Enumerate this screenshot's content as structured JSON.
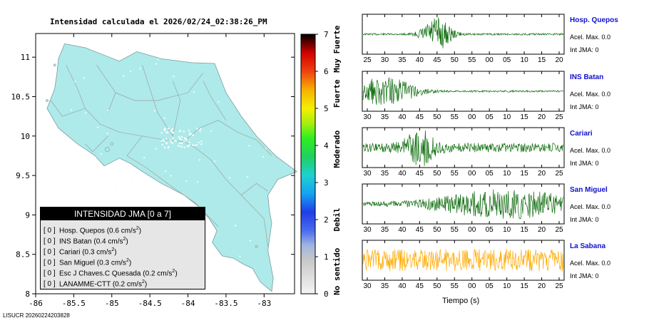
{
  "title": "Intensidad calculada el 2026/02/24_02:38:26_PM",
  "footer": "LISUCR 20260224203828",
  "colors": {
    "land": "#aeeaea",
    "roads": "#a0a0a0",
    "trace_green": "#0a6a0a",
    "trace_orange": "#ffaa00",
    "station_name": "#1010d0"
  },
  "map": {
    "lon_ticks": [
      "-86",
      "-85.5",
      "-85",
      "-84.5",
      "-84",
      "-83.5",
      "-83"
    ],
    "lat_ticks": [
      "8",
      "8.5",
      "9",
      "9.5",
      "10",
      "10.5",
      "11"
    ],
    "lon_range": [
      -86,
      -82.6
    ],
    "lat_range": [
      8.0,
      11.3
    ]
  },
  "colorbar": {
    "ticks": [
      "0",
      "1",
      "2",
      "3",
      "4",
      "5",
      "6",
      "7"
    ],
    "labels": [
      "No sentido",
      "Debil",
      "Moderado",
      "Fuerte",
      "Muy Fuerte"
    ]
  },
  "legend": {
    "header": "INTENSIDAD JMA [0 a 7]",
    "rows": [
      {
        "idx": "[ 0 ]",
        "text": "Hosp. Quepos (0.6 cm/s",
        "sup": "2",
        "close": ")"
      },
      {
        "idx": "[ 0 ]",
        "text": "INS Batan (0.4 cm/s",
        "sup": "2",
        "close": ")"
      },
      {
        "idx": "[ 0 ]",
        "text": "Cariari (0.3 cm/s",
        "sup": "2",
        "close": ")"
      },
      {
        "idx": "[ 0 ]",
        "text": "San Miguel (0.3 cm/s",
        "sup": "2",
        "close": ")"
      },
      {
        "idx": "[ 0 ]",
        "text": "Esc J Chaves.C Quesada (0.2 cm/s",
        "sup": "2",
        "close": ")"
      },
      {
        "idx": "[ 0 ]",
        "text": "LANAMME-CTT (0.2 cm/s",
        "sup": "2",
        "close": ")"
      }
    ]
  },
  "stations": [
    {
      "name": "Hosp. Quepos",
      "acel": "Acel. Max. 0.0",
      "jma": "Int JMA: 0",
      "color": "#0a6a0a",
      "ticks": [
        "25",
        "30",
        "35",
        "40",
        "45",
        "50",
        "55",
        "00",
        "05",
        "10",
        "15",
        "20"
      ]
    },
    {
      "name": "INS Batan",
      "acel": "Acel. Max. 0.0",
      "jma": "Int JMA: 0",
      "color": "#0a6a0a",
      "ticks": [
        "30",
        "35",
        "40",
        "45",
        "50",
        "55",
        "00",
        "05",
        "10",
        "15",
        "20",
        "25"
      ]
    },
    {
      "name": "Cariari",
      "acel": "Acel. Max. 0.0",
      "jma": "Int JMA: 0",
      "color": "#0a6a0a",
      "ticks": [
        "30",
        "35",
        "40",
        "45",
        "50",
        "55",
        "00",
        "05",
        "10",
        "15",
        "20",
        "25"
      ]
    },
    {
      "name": "San Miguel",
      "acel": "Acel. Max. 0.0",
      "jma": "Int JMA: 0",
      "color": "#0a6a0a",
      "ticks": [
        "30",
        "35",
        "40",
        "45",
        "50",
        "55",
        "00",
        "05",
        "10",
        "15",
        "20",
        "25"
      ]
    },
    {
      "name": "La Sabana",
      "acel": "Acel. Max. 0.0",
      "jma": "Int JMA: 0",
      "color": "#ffaa00",
      "ticks": [
        "30",
        "35",
        "40",
        "45",
        "50",
        "55",
        "00",
        "05",
        "10",
        "15",
        "20",
        "25"
      ]
    }
  ],
  "xlabel": "Tiempo (s)",
  "chart_data": [
    {
      "type": "heatmap",
      "title": "Intensidad calculada el 2026/02/24_02:38:26_PM",
      "xlabel": "",
      "ylabel": "",
      "xlim": [
        -86,
        -82.6
      ],
      "ylim": [
        8.0,
        11.3
      ],
      "x_ticks": [
        -86,
        -85.5,
        -85,
        -84.5,
        -84,
        -83.5,
        -83
      ],
      "y_ticks": [
        8,
        8.5,
        9,
        9.5,
        10,
        10.5,
        11
      ],
      "colorbar": {
        "range": [
          0,
          7
        ],
        "labels": [
          "No sentido",
          "Debil",
          "Moderado",
          "Fuerte",
          "Muy Fuerte"
        ]
      },
      "legend": "bottom-left",
      "series": [
        {
          "name": "Hosp. Quepos",
          "intensity": 0,
          "pga_cm_s2": 0.6
        },
        {
          "name": "INS Batan",
          "intensity": 0,
          "pga_cm_s2": 0.4
        },
        {
          "name": "Cariari",
          "intensity": 0,
          "pga_cm_s2": 0.3
        },
        {
          "name": "San Miguel",
          "intensity": 0,
          "pga_cm_s2": 0.3
        },
        {
          "name": "Esc J Chaves.C Quesada",
          "intensity": 0,
          "pga_cm_s2": 0.2
        },
        {
          "name": "LANAMME-CTT",
          "intensity": 0,
          "pga_cm_s2": 0.2
        }
      ]
    },
    {
      "type": "line",
      "xlabel": "Tiempo (s)",
      "series": [
        {
          "name": "Hosp. Quepos",
          "acel_max": 0.0,
          "int_jma": 0,
          "burst_center_tick": "45",
          "noise_level": 0.05,
          "burst_level": 0.9
        },
        {
          "name": "INS Batan",
          "acel_max": 0.0,
          "int_jma": 0,
          "burst_center_tick": "35",
          "noise_level": 0.05,
          "burst_level": 0.75
        },
        {
          "name": "Cariari",
          "acel_max": 0.0,
          "int_jma": 0,
          "burst_center_tick": "45",
          "noise_level": 0.25,
          "burst_level": 0.9
        },
        {
          "name": "San Miguel",
          "acel_max": 0.0,
          "int_jma": 0,
          "burst_center_tick": "10",
          "noise_level": 0.1,
          "burst_level": 0.75
        },
        {
          "name": "La Sabana",
          "acel_max": 0.0,
          "int_jma": 0,
          "burst_center_tick": "",
          "noise_level": 0.6,
          "burst_level": 0.6
        }
      ]
    }
  ]
}
